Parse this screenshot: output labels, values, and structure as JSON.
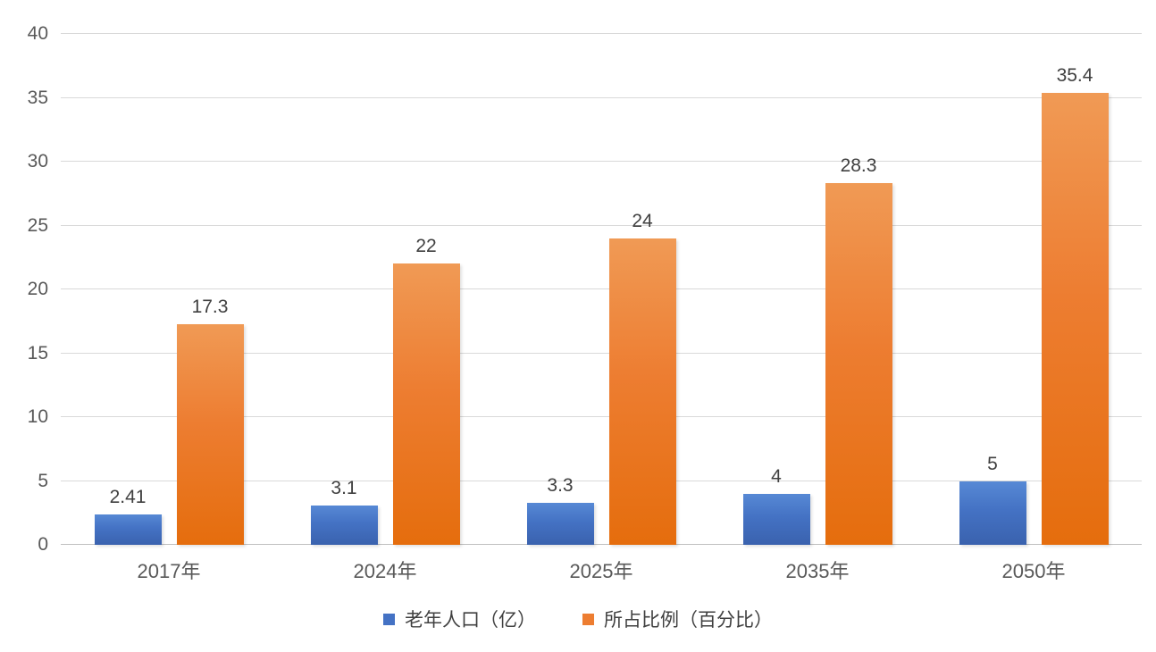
{
  "chart_data": {
    "type": "bar",
    "categories": [
      "2017年",
      "2024年",
      "2025年",
      "2035年",
      "2050年"
    ],
    "series": [
      {
        "name": "老年人口（亿）",
        "values": [
          2.41,
          3.1,
          3.3,
          4,
          5
        ],
        "labels": [
          "2.41",
          "3.1",
          "3.3",
          "4",
          "5"
        ],
        "color": "#4472C4",
        "gradient_top": "#5789D5",
        "gradient_bottom": "#3A62AE"
      },
      {
        "name": "所占比例（百分比）",
        "values": [
          17.3,
          22,
          24,
          28.3,
          35.4
        ],
        "labels": [
          "17.3",
          "22",
          "24",
          "28.3",
          "35.4"
        ],
        "color": "#ED7D31",
        "gradient_top": "#F09A55",
        "gradient_bottom": "#E56D0D"
      }
    ],
    "title": "",
    "xlabel": "",
    "ylabel": "",
    "ylim": [
      0,
      40
    ],
    "yticks": [
      0,
      5,
      10,
      15,
      20,
      25,
      30,
      35,
      40
    ],
    "grid": true,
    "legend_position": "bottom"
  },
  "style": {
    "background": "#FFFFFF",
    "gridline_color": "#D9D9D9",
    "baseline_color": "#BFBFBF",
    "tick_label_color": "#595959",
    "data_label_color": "#404040",
    "legend_text_color": "#404040"
  }
}
